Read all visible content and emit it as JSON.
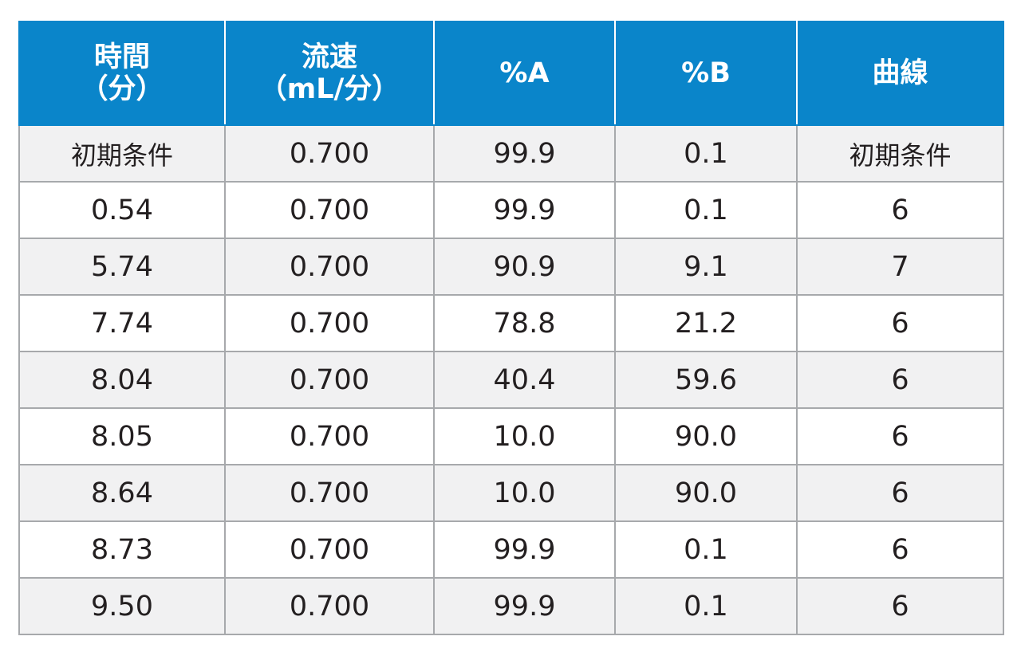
{
  "table": {
    "headers": [
      {
        "line1": "時間",
        "line2": "（分）"
      },
      {
        "line1": "流速",
        "line2": "（mL/分）"
      },
      {
        "line1": "%A",
        "line2": ""
      },
      {
        "line1": "%B",
        "line2": ""
      },
      {
        "line1": "曲線",
        "line2": ""
      }
    ],
    "rows": [
      [
        "初期条件",
        "0.700",
        "99.9",
        "0.1",
        "初期条件"
      ],
      [
        "0.54",
        "0.700",
        "99.9",
        "0.1",
        "6"
      ],
      [
        "5.74",
        "0.700",
        "90.9",
        "9.1",
        "7"
      ],
      [
        "7.74",
        "0.700",
        "78.8",
        "21.2",
        "6"
      ],
      [
        "8.04",
        "0.700",
        "40.4",
        "59.6",
        "6"
      ],
      [
        "8.05",
        "0.700",
        "10.0",
        "90.0",
        "6"
      ],
      [
        "8.64",
        "0.700",
        "10.0",
        "90.0",
        "6"
      ],
      [
        "8.73",
        "0.700",
        "99.9",
        "0.1",
        "6"
      ],
      [
        "9.50",
        "0.700",
        "99.9",
        "0.1",
        "6"
      ]
    ]
  },
  "colors": {
    "header_bg": "#0a85ca",
    "header_text": "#ffffff",
    "row_shade": "#f1f1f2",
    "border": "#a7a9ac",
    "text": "#231f20"
  }
}
